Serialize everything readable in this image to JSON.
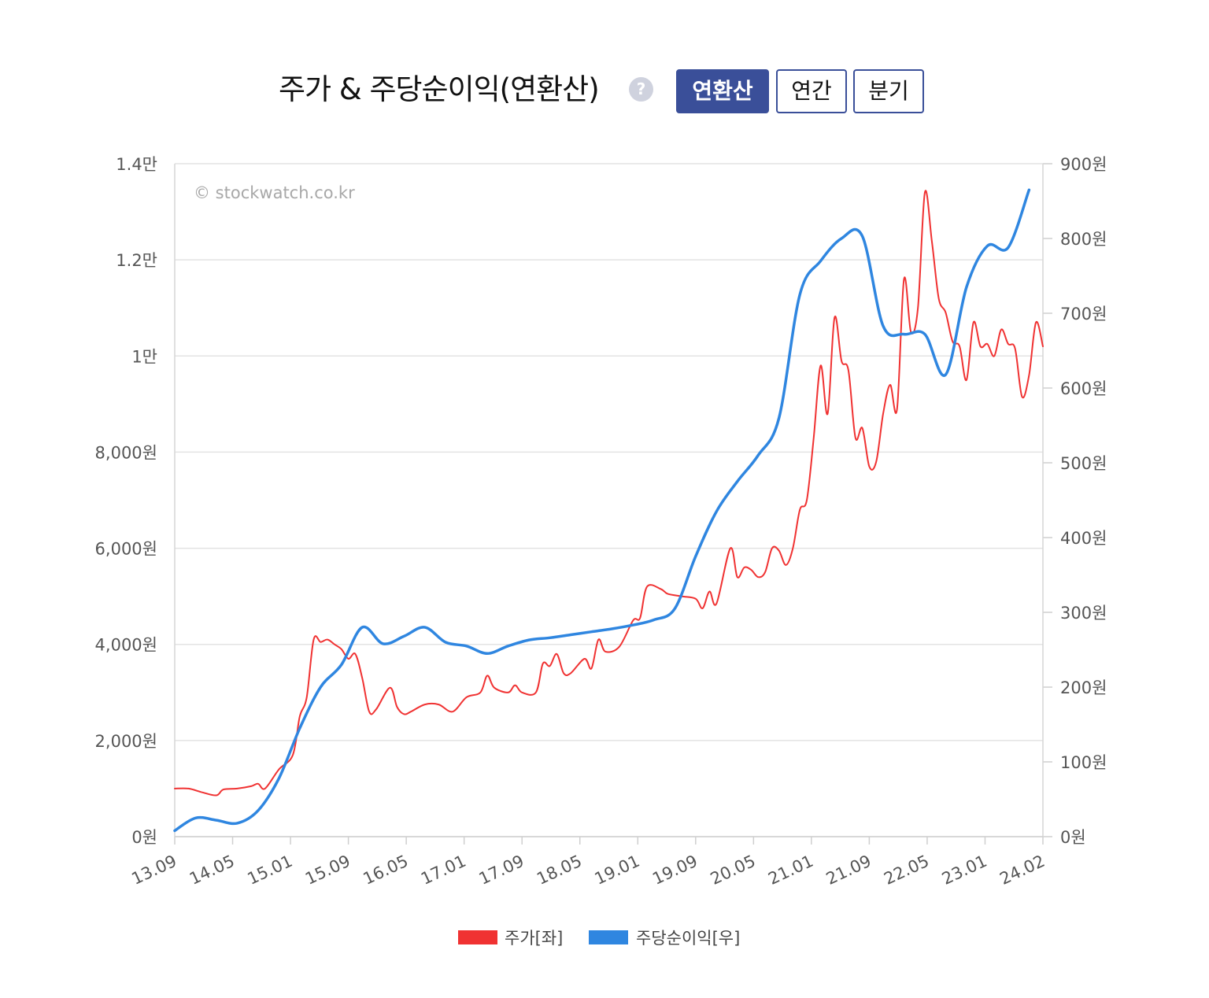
{
  "header": {
    "title": "주가 & 주당순이익(연환산)",
    "help_icon": "?",
    "tabs": [
      {
        "label": "연환산",
        "active": true
      },
      {
        "label": "연간",
        "active": false
      },
      {
        "label": "분기",
        "active": false
      }
    ]
  },
  "colors": {
    "price": "#f03232",
    "eps": "#2f86e0",
    "accent": "#3a4f99",
    "grid": "#e3e3e3"
  },
  "chart_data": {
    "type": "line",
    "watermark": "© stockwatch.co.kr",
    "x_tick_labels": [
      "13.09",
      "14.05",
      "15.01",
      "15.09",
      "16.05",
      "17.01",
      "17.09",
      "18.05",
      "19.01",
      "19.09",
      "20.05",
      "21.01",
      "21.09",
      "22.05",
      "23.01",
      "24.02"
    ],
    "left_axis": {
      "range": [
        0,
        14000
      ],
      "ticks": [
        0,
        2000,
        4000,
        6000,
        8000,
        10000,
        12000,
        14000
      ],
      "tick_labels": [
        "0원",
        "2,000원",
        "4,000원",
        "6,000원",
        "8,000원",
        "1만",
        "1.2만",
        "1.4만"
      ]
    },
    "right_axis": {
      "range": [
        0,
        900
      ],
      "ticks": [
        0,
        100,
        200,
        300,
        400,
        500,
        600,
        700,
        800,
        900
      ],
      "tick_labels": [
        "0원",
        "100원",
        "200원",
        "300원",
        "400원",
        "500원",
        "600원",
        "700원",
        "800원",
        "900원"
      ]
    },
    "x_range": [
      "2013-09",
      "2024-02"
    ],
    "grid": true,
    "legend_position": "bottom",
    "series": [
      {
        "name": "주가[좌]",
        "axis": "left",
        "color": "#f03232",
        "points": [
          [
            "2013-09",
            1000
          ],
          [
            "2013-11",
            1000
          ],
          [
            "2014-01",
            920
          ],
          [
            "2014-03",
            860
          ],
          [
            "2014-04",
            980
          ],
          [
            "2014-06",
            1000
          ],
          [
            "2014-08",
            1050
          ],
          [
            "2014-09",
            1100
          ],
          [
            "2014-10",
            1000
          ],
          [
            "2014-12",
            1400
          ],
          [
            "2015-02",
            1700
          ],
          [
            "2015-03",
            2500
          ],
          [
            "2015-04",
            2900
          ],
          [
            "2015-05",
            4100
          ],
          [
            "2015-06",
            4050
          ],
          [
            "2015-07",
            4100
          ],
          [
            "2015-08",
            4000
          ],
          [
            "2015-09",
            3900
          ],
          [
            "2015-10",
            3700
          ],
          [
            "2015-11",
            3800
          ],
          [
            "2015-12",
            3300
          ],
          [
            "2016-01",
            2600
          ],
          [
            "2016-02",
            2650
          ],
          [
            "2016-04",
            3100
          ],
          [
            "2016-05",
            2700
          ],
          [
            "2016-06",
            2550
          ],
          [
            "2016-07",
            2600
          ],
          [
            "2016-09",
            2750
          ],
          [
            "2016-11",
            2750
          ],
          [
            "2017-01",
            2600
          ],
          [
            "2017-03",
            2900
          ],
          [
            "2017-05",
            3000
          ],
          [
            "2017-06",
            3350
          ],
          [
            "2017-07",
            3100
          ],
          [
            "2017-09",
            3000
          ],
          [
            "2017-10",
            3150
          ],
          [
            "2017-11",
            3000
          ],
          [
            "2018-01",
            3000
          ],
          [
            "2018-02",
            3600
          ],
          [
            "2018-03",
            3550
          ],
          [
            "2018-04",
            3800
          ],
          [
            "2018-05",
            3400
          ],
          [
            "2018-06",
            3400
          ],
          [
            "2018-08",
            3700
          ],
          [
            "2018-09",
            3500
          ],
          [
            "2018-10",
            4100
          ],
          [
            "2018-11",
            3850
          ],
          [
            "2019-01",
            3950
          ],
          [
            "2019-03",
            4500
          ],
          [
            "2019-04",
            4550
          ],
          [
            "2019-05",
            5200
          ],
          [
            "2019-07",
            5150
          ],
          [
            "2019-08",
            5050
          ],
          [
            "2019-10",
            5000
          ],
          [
            "2019-12",
            4950
          ],
          [
            "2020-01",
            4750
          ],
          [
            "2020-02",
            5100
          ],
          [
            "2020-03",
            4850
          ],
          [
            "2020-05",
            6000
          ],
          [
            "2020-06",
            5400
          ],
          [
            "2020-07",
            5600
          ],
          [
            "2020-08",
            5550
          ],
          [
            "2020-09",
            5400
          ],
          [
            "2020-10",
            5500
          ],
          [
            "2020-11",
            6000
          ],
          [
            "2020-12",
            5950
          ],
          [
            "2021-01",
            5650
          ],
          [
            "2021-02",
            6000
          ],
          [
            "2021-03",
            6800
          ],
          [
            "2021-04",
            7000
          ],
          [
            "2021-05",
            8300
          ],
          [
            "2021-06",
            9800
          ],
          [
            "2021-07",
            8800
          ],
          [
            "2021-08",
            10800
          ],
          [
            "2021-09",
            9900
          ],
          [
            "2021-10",
            9700
          ],
          [
            "2021-11",
            8300
          ],
          [
            "2021-12",
            8500
          ],
          [
            "2022-01",
            7700
          ],
          [
            "2022-02",
            7800
          ],
          [
            "2022-03",
            8800
          ],
          [
            "2022-04",
            9400
          ],
          [
            "2022-05",
            8900
          ],
          [
            "2022-06",
            11600
          ],
          [
            "2022-07",
            10500
          ],
          [
            "2022-08",
            11000
          ],
          [
            "2022-09",
            13400
          ],
          [
            "2022-10",
            12400
          ],
          [
            "2022-11",
            11200
          ],
          [
            "2022-12",
            10900
          ],
          [
            "2023-01",
            10300
          ],
          [
            "2023-02",
            10200
          ],
          [
            "2023-03",
            9500
          ],
          [
            "2023-04",
            10700
          ],
          [
            "2023-05",
            10200
          ],
          [
            "2023-06",
            10250
          ],
          [
            "2023-07",
            10000
          ],
          [
            "2023-08",
            10550
          ],
          [
            "2023-09",
            10250
          ],
          [
            "2023-10",
            10150
          ],
          [
            "2023-11",
            9150
          ],
          [
            "2023-12",
            9600
          ],
          [
            "2024-01",
            10700
          ],
          [
            "2024-02",
            10200
          ]
        ]
      },
      {
        "name": "주당순이익[우]",
        "axis": "right",
        "color": "#2f86e0",
        "points": [
          [
            "2013-09",
            8
          ],
          [
            "2013-12",
            25
          ],
          [
            "2014-03",
            22
          ],
          [
            "2014-06",
            18
          ],
          [
            "2014-09",
            35
          ],
          [
            "2014-12",
            78
          ],
          [
            "2015-03",
            145
          ],
          [
            "2015-06",
            200
          ],
          [
            "2015-09",
            230
          ],
          [
            "2015-12",
            280
          ],
          [
            "2016-03",
            258
          ],
          [
            "2016-06",
            268
          ],
          [
            "2016-09",
            280
          ],
          [
            "2016-12",
            260
          ],
          [
            "2017-03",
            255
          ],
          [
            "2017-06",
            245
          ],
          [
            "2017-09",
            255
          ],
          [
            "2017-12",
            263
          ],
          [
            "2018-03",
            266
          ],
          [
            "2018-06",
            270
          ],
          [
            "2018-09",
            274
          ],
          [
            "2018-12",
            278
          ],
          [
            "2019-03",
            283
          ],
          [
            "2019-06",
            290
          ],
          [
            "2019-09",
            305
          ],
          [
            "2019-12",
            375
          ],
          [
            "2020-03",
            435
          ],
          [
            "2020-06",
            475
          ],
          [
            "2020-09",
            510
          ],
          [
            "2020-12",
            560
          ],
          [
            "2021-03",
            725
          ],
          [
            "2021-06",
            770
          ],
          [
            "2021-09",
            800
          ],
          [
            "2021-12",
            803
          ],
          [
            "2022-03",
            683
          ],
          [
            "2022-06",
            672
          ],
          [
            "2022-09",
            672
          ],
          [
            "2022-12",
            618
          ],
          [
            "2023-03",
            735
          ],
          [
            "2023-06",
            790
          ],
          [
            "2023-09",
            788
          ],
          [
            "2023-12",
            865
          ]
        ]
      }
    ]
  }
}
